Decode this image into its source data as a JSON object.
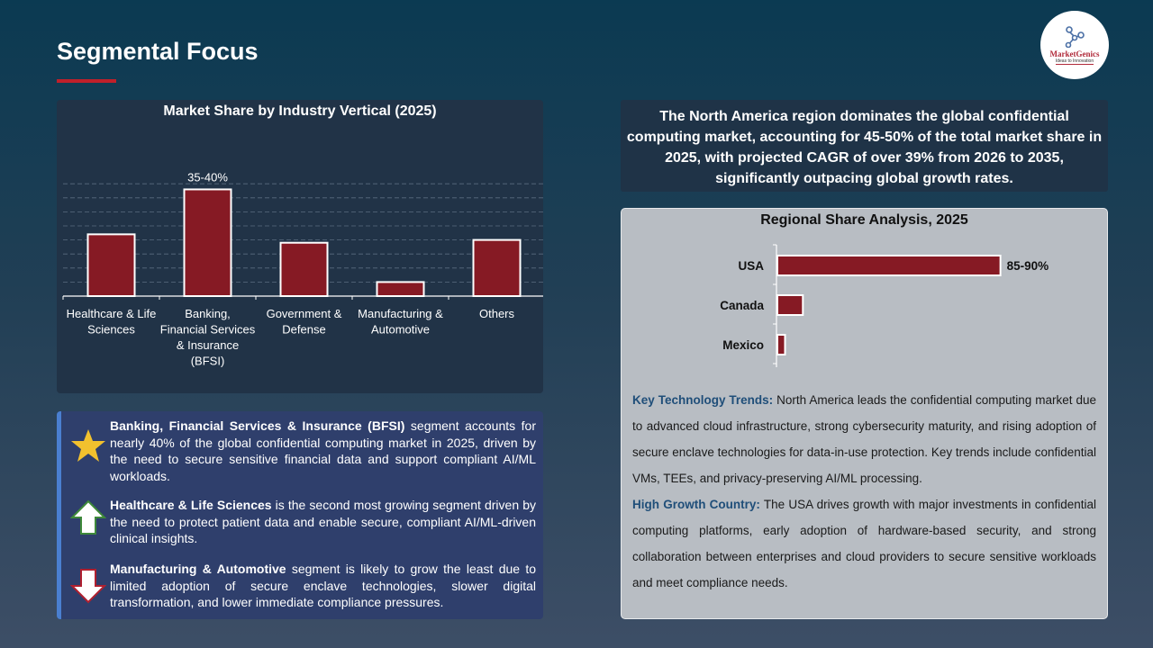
{
  "header": {
    "title": "Segmental Focus",
    "logo_text": "MarketGenics",
    "logo_tagline": "Ideas to Innovation"
  },
  "chart_data": [
    {
      "type": "bar",
      "title": "Market Share by Industry Vertical (2025)",
      "categories": [
        "Healthcare & Life Sciences",
        "Banking, Financial Services & Insurance (BFSI)",
        "Government & Defense",
        "Manufacturing & Automotive",
        "Others"
      ],
      "values": [
        22,
        38,
        19,
        5,
        20
      ],
      "data_labels": [
        "",
        "35-40%",
        "",
        "",
        ""
      ],
      "ylim": [
        0,
        40
      ],
      "grid": true,
      "colors": {
        "bar": "#861a24",
        "outline": "#ffffff"
      }
    },
    {
      "type": "bar",
      "orientation": "horizontal",
      "title": "Regional Share Analysis, 2025",
      "categories": [
        "USA",
        "Canada",
        "Mexico"
      ],
      "values": [
        87.5,
        10,
        3
      ],
      "data_labels": [
        "85-90%",
        "",
        ""
      ],
      "xlim": [
        0,
        100
      ],
      "grid": false
    }
  ],
  "summary": "The North America region dominates the global confidential computing market, accounting for 45-50% of the total market share in 2025, with projected CAGR of over 39% from 2026 to 2035, significantly outpacing global growth rates.",
  "insights": [
    {
      "icon": "star-icon",
      "bold": "Banking, Financial Services & Insurance (BFSI)",
      "text": " segment accounts for nearly 40% of the global confidential computing market in 2025, driven by the need to secure sensitive financial data and support compliant AI/ML workloads."
    },
    {
      "icon": "arrow-up-icon",
      "bold": "Healthcare & Life Sciences",
      "text": " is the second most growing segment driven by the need to protect patient data and enable secure, compliant AI/ML-driven clinical insights."
    },
    {
      "icon": "arrow-down-icon",
      "bold": "Manufacturing & Automotive",
      "text": " segment is likely to grow the least due to limited adoption of secure enclave technologies, slower digital transformation, and lower immediate compliance pressures."
    }
  ],
  "trends": {
    "label": "Key Technology Trends:",
    "text": " North America leads the confidential computing market due to advanced cloud infrastructure, strong cybersecurity maturity, and rising adoption of secure enclave technologies for data-in-use protection. Key trends include confidential VMs, TEEs, and privacy-preserving AI/ML processing."
  },
  "growth": {
    "label": "High Growth Country:",
    "text": " The USA drives growth with major investments in confidential computing platforms, early adoption of hardware-based security, and strong collaboration between enterprises and cloud providers to secure sensitive workloads and meet compliance needs."
  }
}
